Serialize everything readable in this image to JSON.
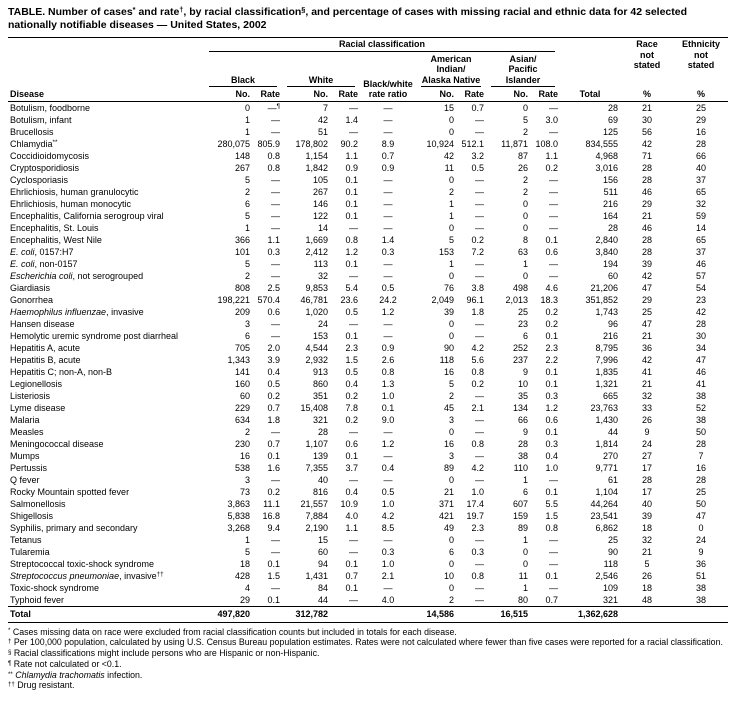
{
  "title_segments": [
    [
      "",
      "TABLE. Number of cases"
    ],
    [
      "s",
      "*"
    ],
    [
      "",
      " and rate"
    ],
    [
      "s",
      "†"
    ],
    [
      "",
      ", by racial classification"
    ],
    [
      "s",
      "§"
    ],
    [
      "",
      ", and percentage of cases with missing racial and ethnic data for 42 selected nationally notifiable diseases — United States, 2002"
    ]
  ],
  "header": {
    "disease": "Disease",
    "racial_classification": "Racial classification",
    "total": "Total",
    "race_not_stated": "Race\nnot\nstated",
    "ethnicity_not_stated": "Ethnicity\nnot\nstated",
    "black": "Black",
    "white": "White",
    "black_white_ratio": "Black/white\nrate ratio",
    "american_indian": "American Indian/\nAlaska Native",
    "asian_pacific": "Asian/\nPacific Islander",
    "no": "No.",
    "rate": "Rate",
    "percent": "%"
  },
  "rows": [
    {
      "d": [
        [
          "",
          "Botulism, foodborne"
        ]
      ],
      "v": [
        "0",
        "—¶",
        "7",
        "—",
        "—",
        "15",
        "0.7",
        "0",
        "—",
        "28",
        "21",
        "25"
      ]
    },
    {
      "d": [
        [
          "",
          "Botulism, infant"
        ]
      ],
      "v": [
        "1",
        "—",
        "42",
        "1.4",
        "—",
        "0",
        "—",
        "5",
        "3.0",
        "69",
        "30",
        "29"
      ]
    },
    {
      "d": [
        [
          "",
          "Brucellosis"
        ]
      ],
      "v": [
        "1",
        "—",
        "51",
        "—",
        "—",
        "0",
        "—",
        "2",
        "—",
        "125",
        "56",
        "16"
      ]
    },
    {
      "d": [
        [
          "",
          "Chlamydia"
        ],
        [
          "s",
          "**"
        ]
      ],
      "v": [
        "280,075",
        "805.9",
        "178,802",
        "90.2",
        "8.9",
        "10,924",
        "512.1",
        "11,871",
        "108.0",
        "834,555",
        "42",
        "28"
      ]
    },
    {
      "d": [
        [
          "",
          "Coccidioidomycosis"
        ]
      ],
      "v": [
        "148",
        "0.8",
        "1,154",
        "1.1",
        "0.7",
        "42",
        "3.2",
        "87",
        "1.1",
        "4,968",
        "71",
        "66"
      ]
    },
    {
      "d": [
        [
          "",
          "Cryptosporidiosis"
        ]
      ],
      "v": [
        "267",
        "0.8",
        "1,842",
        "0.9",
        "0.9",
        "11",
        "0.5",
        "26",
        "0.2",
        "3,016",
        "28",
        "40"
      ]
    },
    {
      "d": [
        [
          "",
          "Cyclosporiasis"
        ]
      ],
      "v": [
        "5",
        "—",
        "105",
        "0.1",
        "—",
        "0",
        "—",
        "2",
        "—",
        "156",
        "28",
        "37"
      ]
    },
    {
      "d": [
        [
          "",
          "Ehrlichiosis, human granulocytic"
        ]
      ],
      "v": [
        "2",
        "—",
        "267",
        "0.1",
        "—",
        "2",
        "—",
        "2",
        "—",
        "511",
        "46",
        "65"
      ]
    },
    {
      "d": [
        [
          "",
          "Ehrlichiosis, human monocytic"
        ]
      ],
      "v": [
        "6",
        "—",
        "146",
        "0.1",
        "—",
        "1",
        "—",
        "0",
        "—",
        "216",
        "29",
        "32"
      ]
    },
    {
      "d": [
        [
          "",
          "Encephalitis, California serogroup viral"
        ]
      ],
      "v": [
        "5",
        "—",
        "122",
        "0.1",
        "—",
        "1",
        "—",
        "0",
        "—",
        "164",
        "21",
        "59"
      ]
    },
    {
      "d": [
        [
          "",
          "Encephalitis, St. Louis"
        ]
      ],
      "v": [
        "1",
        "—",
        "14",
        "—",
        "—",
        "0",
        "—",
        "0",
        "—",
        "28",
        "46",
        "14"
      ]
    },
    {
      "d": [
        [
          "",
          "Encephalitis, West Nile"
        ]
      ],
      "v": [
        "366",
        "1.1",
        "1,669",
        "0.8",
        "1.4",
        "5",
        "0.2",
        "8",
        "0.1",
        "2,840",
        "28",
        "65"
      ]
    },
    {
      "d": [
        [
          "i",
          "E. coli"
        ],
        [
          "",
          ", 0157:H7"
        ]
      ],
      "v": [
        "101",
        "0.3",
        "2,412",
        "1.2",
        "0.3",
        "153",
        "7.2",
        "63",
        "0.6",
        "3,840",
        "28",
        "37"
      ]
    },
    {
      "d": [
        [
          "i",
          "E. coli"
        ],
        [
          "",
          ", non-0157"
        ]
      ],
      "v": [
        "5",
        "—",
        "113",
        "0.1",
        "—",
        "1",
        "—",
        "1",
        "—",
        "194",
        "39",
        "46"
      ]
    },
    {
      "d": [
        [
          "i",
          "Escherichia coli"
        ],
        [
          "",
          ", not serogrouped"
        ]
      ],
      "v": [
        "2",
        "—",
        "32",
        "—",
        "—",
        "0",
        "—",
        "0",
        "—",
        "60",
        "42",
        "57"
      ]
    },
    {
      "d": [
        [
          "",
          "Giardiasis"
        ]
      ],
      "v": [
        "808",
        "2.5",
        "9,853",
        "5.4",
        "0.5",
        "76",
        "3.8",
        "498",
        "4.6",
        "21,206",
        "47",
        "54"
      ]
    },
    {
      "d": [
        [
          "",
          "Gonorrhea"
        ]
      ],
      "v": [
        "198,221",
        "570.4",
        "46,781",
        "23.6",
        "24.2",
        "2,049",
        "96.1",
        "2,013",
        "18.3",
        "351,852",
        "29",
        "23"
      ]
    },
    {
      "d": [
        [
          "i",
          "Haemophilus influenzae"
        ],
        [
          "",
          ", invasive"
        ]
      ],
      "v": [
        "209",
        "0.6",
        "1,020",
        "0.5",
        "1.2",
        "39",
        "1.8",
        "25",
        "0.2",
        "1,743",
        "25",
        "42"
      ]
    },
    {
      "d": [
        [
          "",
          "Hansen disease"
        ]
      ],
      "v": [
        "3",
        "—",
        "24",
        "—",
        "—",
        "0",
        "—",
        "23",
        "0.2",
        "96",
        "47",
        "28"
      ]
    },
    {
      "d": [
        [
          "",
          "Hemolytic uremic syndrome post diarrheal"
        ]
      ],
      "v": [
        "6",
        "—",
        "153",
        "0.1",
        "—",
        "0",
        "—",
        "6",
        "0.1",
        "216",
        "21",
        "30"
      ]
    },
    {
      "d": [
        [
          "",
          "Hepatitis A, acute"
        ]
      ],
      "v": [
        "705",
        "2.0",
        "4,544",
        "2.3",
        "0.9",
        "90",
        "4.2",
        "252",
        "2.3",
        "8,795",
        "36",
        "34"
      ]
    },
    {
      "d": [
        [
          "",
          "Hepatitis B, acute"
        ]
      ],
      "v": [
        "1,343",
        "3.9",
        "2,932",
        "1.5",
        "2.6",
        "118",
        "5.6",
        "237",
        "2.2",
        "7,996",
        "42",
        "47"
      ]
    },
    {
      "d": [
        [
          "",
          "Hepatitis C; non-A, non-B"
        ]
      ],
      "v": [
        "141",
        "0.4",
        "913",
        "0.5",
        "0.8",
        "16",
        "0.8",
        "9",
        "0.1",
        "1,835",
        "41",
        "46"
      ]
    },
    {
      "d": [
        [
          "",
          "Legionellosis"
        ]
      ],
      "v": [
        "160",
        "0.5",
        "860",
        "0.4",
        "1.3",
        "5",
        "0.2",
        "10",
        "0.1",
        "1,321",
        "21",
        "41"
      ]
    },
    {
      "d": [
        [
          "",
          "Listeriosis"
        ]
      ],
      "v": [
        "60",
        "0.2",
        "351",
        "0.2",
        "1.0",
        "2",
        "—",
        "35",
        "0.3",
        "665",
        "32",
        "38"
      ]
    },
    {
      "d": [
        [
          "",
          "Lyme disease"
        ]
      ],
      "v": [
        "229",
        "0.7",
        "15,408",
        "7.8",
        "0.1",
        "45",
        "2.1",
        "134",
        "1.2",
        "23,763",
        "33",
        "52"
      ]
    },
    {
      "d": [
        [
          "",
          "Malaria"
        ]
      ],
      "v": [
        "634",
        "1.8",
        "321",
        "0.2",
        "9.0",
        "3",
        "—",
        "66",
        "0.6",
        "1,430",
        "26",
        "38"
      ]
    },
    {
      "d": [
        [
          "",
          "Measles"
        ]
      ],
      "v": [
        "2",
        "—",
        "28",
        "—",
        "—",
        "0",
        "—",
        "9",
        "0.1",
        "44",
        "9",
        "50"
      ]
    },
    {
      "d": [
        [
          "",
          "Meningococcal disease"
        ]
      ],
      "v": [
        "230",
        "0.7",
        "1,107",
        "0.6",
        "1.2",
        "16",
        "0.8",
        "28",
        "0.3",
        "1,814",
        "24",
        "28"
      ]
    },
    {
      "d": [
        [
          "",
          "Mumps"
        ]
      ],
      "v": [
        "16",
        "0.1",
        "139",
        "0.1",
        "—",
        "3",
        "—",
        "38",
        "0.4",
        "270",
        "27",
        "7"
      ]
    },
    {
      "d": [
        [
          "",
          "Pertussis"
        ]
      ],
      "v": [
        "538",
        "1.6",
        "7,355",
        "3.7",
        "0.4",
        "89",
        "4.2",
        "110",
        "1.0",
        "9,771",
        "17",
        "16"
      ]
    },
    {
      "d": [
        [
          "",
          "Q fever"
        ]
      ],
      "v": [
        "3",
        "—",
        "40",
        "—",
        "—",
        "0",
        "—",
        "1",
        "—",
        "61",
        "28",
        "28"
      ]
    },
    {
      "d": [
        [
          "",
          "Rocky Mountain spotted fever"
        ]
      ],
      "v": [
        "73",
        "0.2",
        "816",
        "0.4",
        "0.5",
        "21",
        "1.0",
        "6",
        "0.1",
        "1,104",
        "17",
        "25"
      ]
    },
    {
      "d": [
        [
          "",
          "Salmonellosis"
        ]
      ],
      "v": [
        "3,863",
        "11.1",
        "21,557",
        "10.9",
        "1.0",
        "371",
        "17.4",
        "607",
        "5.5",
        "44,264",
        "40",
        "50"
      ]
    },
    {
      "d": [
        [
          "",
          "Shigellosis"
        ]
      ],
      "v": [
        "5,838",
        "16.8",
        "7,884",
        "4.0",
        "4.2",
        "421",
        "19.7",
        "159",
        "1.5",
        "23,541",
        "39",
        "47"
      ]
    },
    {
      "d": [
        [
          "",
          "Syphilis, primary and secondary"
        ]
      ],
      "v": [
        "3,268",
        "9.4",
        "2,190",
        "1.1",
        "8.5",
        "49",
        "2.3",
        "89",
        "0.8",
        "6,862",
        "18",
        "0"
      ]
    },
    {
      "d": [
        [
          "",
          "Tetanus"
        ]
      ],
      "v": [
        "1",
        "—",
        "15",
        "—",
        "—",
        "0",
        "—",
        "1",
        "—",
        "25",
        "32",
        "24"
      ]
    },
    {
      "d": [
        [
          "",
          "Tularemia"
        ]
      ],
      "v": [
        "5",
        "—",
        "60",
        "—",
        "0.3",
        "6",
        "0.3",
        "0",
        "—",
        "90",
        "21",
        "9"
      ]
    },
    {
      "d": [
        [
          "",
          "Streptococcal toxic-shock syndrome"
        ]
      ],
      "v": [
        "18",
        "0.1",
        "94",
        "0.1",
        "1.0",
        "0",
        "—",
        "0",
        "—",
        "118",
        "5",
        "36"
      ]
    },
    {
      "d": [
        [
          "i",
          "Streptococcus pneumoniae"
        ],
        [
          "",
          ", invasive"
        ],
        [
          "s",
          "††"
        ]
      ],
      "v": [
        "428",
        "1.5",
        "1,431",
        "0.7",
        "2.1",
        "10",
        "0.8",
        "11",
        "0.1",
        "2,546",
        "26",
        "51"
      ]
    },
    {
      "d": [
        [
          "",
          "Toxic-shock syndrome"
        ]
      ],
      "v": [
        "4",
        "—",
        "84",
        "0.1",
        "—",
        "0",
        "—",
        "1",
        "—",
        "109",
        "18",
        "38"
      ]
    },
    {
      "d": [
        [
          "",
          "Typhoid fever"
        ]
      ],
      "v": [
        "29",
        "0.1",
        "44",
        "—",
        "4.0",
        "2",
        "—",
        "80",
        "0.7",
        "321",
        "48",
        "38"
      ]
    }
  ],
  "total_row": {
    "label": "Total",
    "values": [
      "497,820",
      "",
      "312,782",
      "",
      "",
      "14,586",
      "",
      "16,515",
      "",
      "1,362,628",
      "",
      ""
    ]
  },
  "footnotes": [
    [
      [
        "s",
        "*"
      ],
      [
        "",
        " Cases missing data on race were excluded from racial classification counts but included in totals for each disease."
      ]
    ],
    [
      [
        "s",
        "†"
      ],
      [
        "",
        " Per 100,000 population, calculated by using U.S. Census Bureau population estimates. Rates were not calculated where fewer than five cases were reported for a racial classification."
      ]
    ],
    [
      [
        "s",
        "§"
      ],
      [
        "",
        " Racial classifications might include persons who are Hispanic or non-Hispanic."
      ]
    ],
    [
      [
        "s",
        "¶"
      ],
      [
        "",
        " Rate not calculated or <0.1."
      ]
    ],
    [
      [
        "s",
        "**"
      ],
      [
        "i",
        " Chlamydia trachomatis"
      ],
      [
        "",
        " infection."
      ]
    ],
    [
      [
        "s",
        "††"
      ],
      [
        "",
        " Drug resistant."
      ]
    ]
  ]
}
